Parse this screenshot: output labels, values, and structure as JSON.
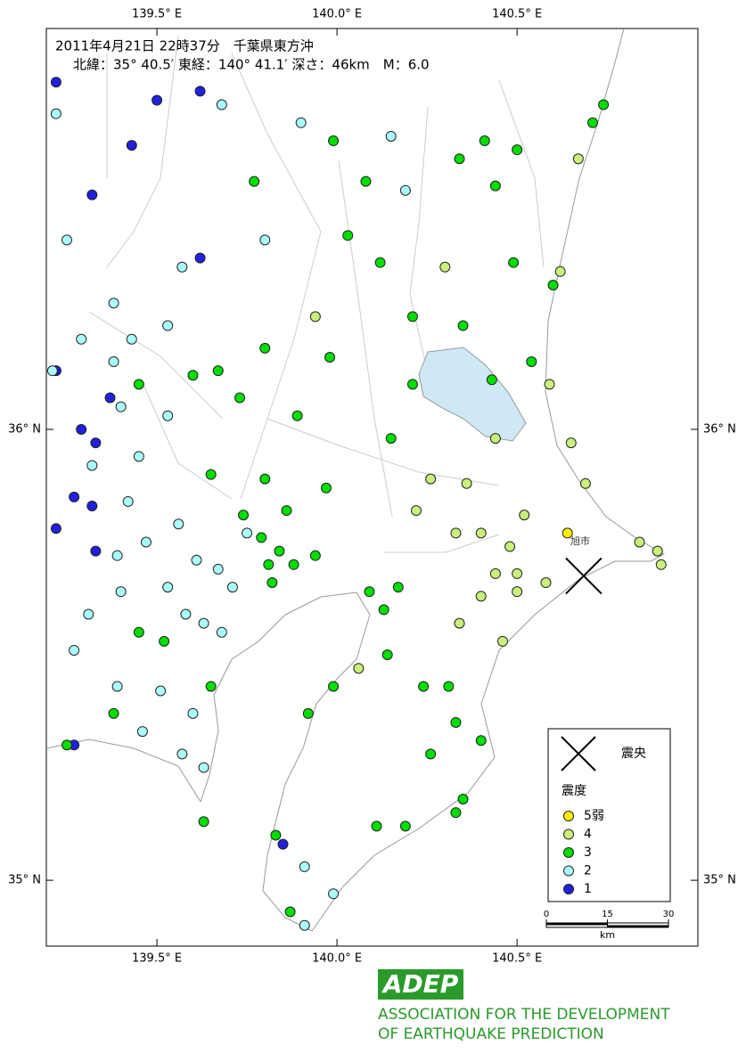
{
  "map": {
    "title": "2011年4月21日 22時37分　千葉県東方沖",
    "subtitle": "北緯：35° 40.5′ 東経：140° 41.1′ 深さ：46km　M：6.0",
    "xlim": [
      139.193,
      141.002
    ],
    "ylim": [
      34.854,
      36.889
    ],
    "xticks": [
      {
        "value": 139.5,
        "label": "139.5° E"
      },
      {
        "value": 140.0,
        "label": "140.0° E"
      },
      {
        "value": 140.5,
        "label": "140.5° E"
      }
    ],
    "yticks": [
      {
        "value": 35,
        "label": "35° N"
      },
      {
        "value": 36,
        "label": "36° N"
      }
    ],
    "epicenter": {
      "lon": 140.685,
      "lat": 35.675,
      "label": "震央"
    },
    "place_label": "旭市",
    "legend_title": "震度",
    "series": [
      {
        "name": "5弱",
        "color": "#ffee00",
        "lon": [
          140.64
        ],
        "lat": [
          35.77
        ]
      },
      {
        "name": "4",
        "color": "#c8f07a",
        "lon": [
          140.67,
          140.62,
          140.59,
          140.65,
          140.69,
          140.52,
          140.84,
          140.89,
          140.9,
          140.44,
          140.5,
          140.58,
          140.4,
          140.5,
          140.34,
          140.46,
          140.26,
          140.36,
          140.22,
          140.33,
          140.4,
          140.48,
          139.94,
          140.06,
          140.3,
          140.44
        ],
        "lat": [
          36.6,
          36.35,
          36.1,
          35.97,
          35.88,
          35.81,
          35.75,
          35.73,
          35.7,
          35.68,
          35.68,
          35.66,
          35.63,
          35.64,
          35.57,
          35.53,
          35.89,
          35.88,
          35.82,
          35.77,
          35.77,
          35.74,
          36.25,
          35.47,
          36.36,
          35.98
        ]
      },
      {
        "name": "3",
        "color": "#00dd00",
        "lon": [
          140.74,
          140.71,
          140.41,
          140.5,
          140.34,
          140.44,
          140.08,
          139.99,
          139.77,
          140.03,
          140.12,
          140.49,
          140.6,
          140.21,
          140.35,
          140.54,
          140.21,
          140.43,
          140.15,
          139.98,
          139.8,
          139.67,
          139.6,
          139.45,
          139.73,
          139.89,
          139.65,
          139.8,
          139.86,
          139.74,
          139.79,
          139.81,
          139.84,
          139.88,
          139.94,
          139.82,
          140.09,
          140.17,
          140.13,
          140.14,
          140.24,
          140.31,
          140.33,
          140.4,
          140.26,
          140.35,
          140.33,
          140.11,
          140.19,
          139.92,
          139.99,
          139.83,
          139.87,
          139.65,
          139.52,
          139.45,
          139.63,
          139.38,
          139.25,
          139.97
        ],
        "lat": [
          36.72,
          36.68,
          36.64,
          36.62,
          36.6,
          36.54,
          36.55,
          36.64,
          36.55,
          36.43,
          36.37,
          36.37,
          36.32,
          36.25,
          36.23,
          36.15,
          36.1,
          36.11,
          35.98,
          36.16,
          36.18,
          36.13,
          36.12,
          36.1,
          36.07,
          36.03,
          35.9,
          35.89,
          35.82,
          35.81,
          35.76,
          35.7,
          35.73,
          35.7,
          35.72,
          35.66,
          35.64,
          35.65,
          35.6,
          35.5,
          35.43,
          35.43,
          35.35,
          35.31,
          35.28,
          35.18,
          35.15,
          35.12,
          35.12,
          35.37,
          35.43,
          35.1,
          34.93,
          35.43,
          35.53,
          35.55,
          35.13,
          35.37,
          35.3,
          35.87
        ]
      },
      {
        "name": "2",
        "color": "#aaffff",
        "lon": [
          139.22,
          139.68,
          140.15,
          139.9,
          140.19,
          139.8,
          139.57,
          139.25,
          139.38,
          139.29,
          139.43,
          139.53,
          139.38,
          139.21,
          139.4,
          139.53,
          139.45,
          139.32,
          139.42,
          139.56,
          139.47,
          139.61,
          139.67,
          139.71,
          139.53,
          139.4,
          139.58,
          139.68,
          139.31,
          139.27,
          139.39,
          139.51,
          139.6,
          139.46,
          139.57,
          139.63,
          139.91,
          139.99,
          139.91,
          139.39,
          139.75,
          139.63
        ],
        "lat": [
          36.7,
          36.72,
          36.65,
          36.68,
          36.53,
          36.42,
          36.36,
          36.42,
          36.28,
          36.2,
          36.2,
          36.23,
          36.15,
          36.13,
          36.05,
          36.03,
          35.94,
          35.92,
          35.84,
          35.79,
          35.75,
          35.71,
          35.69,
          35.65,
          35.65,
          35.64,
          35.59,
          35.55,
          35.59,
          35.51,
          35.43,
          35.42,
          35.37,
          35.33,
          35.28,
          35.25,
          35.03,
          34.97,
          34.9,
          35.72,
          35.77,
          35.57
        ]
      },
      {
        "name": "1",
        "color": "#2020dd",
        "lon": [
          139.22,
          139.62,
          139.5,
          139.43,
          139.32,
          139.62,
          139.22,
          139.37,
          139.29,
          139.33,
          139.27,
          139.32,
          139.22,
          139.33,
          139.27,
          139.85
        ],
        "lat": [
          36.77,
          36.75,
          36.73,
          36.63,
          36.52,
          36.38,
          36.13,
          36.07,
          36.0,
          35.97,
          35.85,
          35.83,
          35.78,
          35.73,
          35.3,
          35.08
        ]
      }
    ],
    "scale": {
      "ticks": [
        0,
        15,
        30
      ],
      "unit": "km"
    },
    "logo": {
      "mark": "ADEP",
      "lines": [
        "ASSOCIATION  FOR THE DEVELOPMENT",
        "OF EARTHQUAKE PREDICTION"
      ]
    }
  }
}
